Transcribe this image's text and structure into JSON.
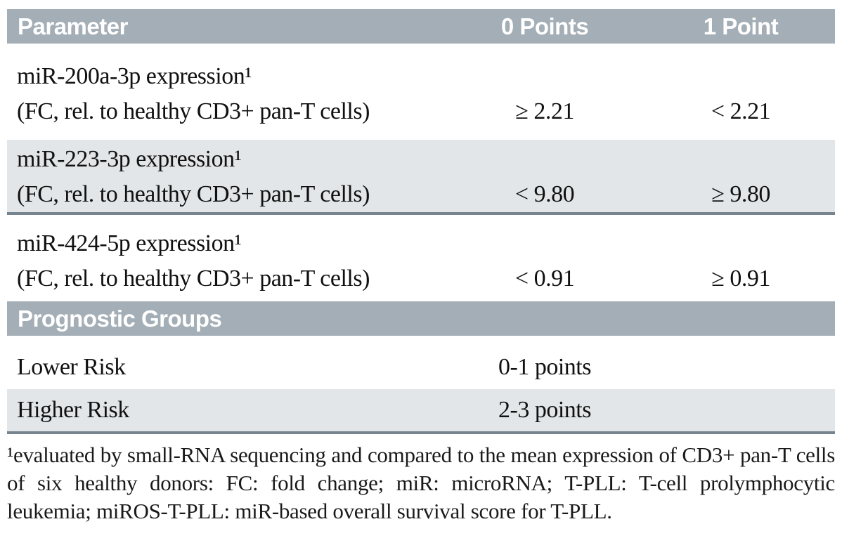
{
  "colors": {
    "band": "#a4aeb6",
    "zebra": "#e3e6e8",
    "rule": "#76848f"
  },
  "table": {
    "header": {
      "parameter": "Parameter",
      "zero_points": "0 Points",
      "one_point": "1 Point"
    },
    "rows": [
      {
        "name": "miR-200a-3p expression¹",
        "subtitle": "(FC, rel. to healthy CD3+ pan-T cells)",
        "points0": "≥ 2.21",
        "points1": "< 2.21"
      },
      {
        "name": "miR-223-3p expression¹",
        "subtitle": "(FC, rel. to healthy CD3+ pan-T cells)",
        "points0": "< 9.80",
        "points1": "≥ 9.80"
      },
      {
        "name": "miR-424-5p expression¹",
        "subtitle": "(FC, rel. to healthy CD3+ pan-T cells)",
        "points0": "< 0.91",
        "points1": "≥ 0.91"
      }
    ],
    "groups_header": "Prognostic Groups",
    "groups": [
      {
        "label": "Lower Risk",
        "points": "0-1 points"
      },
      {
        "label": "Higher Risk",
        "points": "2-3 points"
      }
    ],
    "footnote": "¹evaluated by small-RNA sequencing and compared to the mean expression of CD3+ pan-T cells of six healthy donors: FC: fold change; miR: microRNA; T-PLL: T-cell prolymphocytic leukemia; miROS-T-PLL: miR-based overall survival score for T-PLL."
  }
}
